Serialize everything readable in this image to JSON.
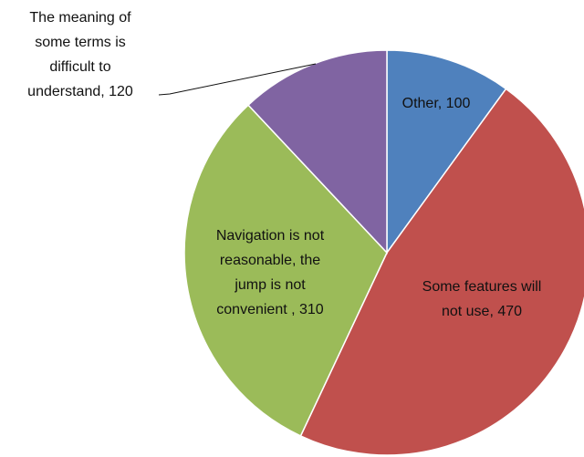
{
  "chart_data": {
    "type": "pie",
    "title": "",
    "slices": [
      {
        "name": "Other",
        "value": 100,
        "color": "#4f81bd",
        "label": [
          "Other, 100"
        ]
      },
      {
        "name": "Some features will not use",
        "value": 470,
        "color": "#c0504d",
        "label": [
          "Some features will",
          "not use, 470"
        ]
      },
      {
        "name": "Navigation is not reasonable, the jump is not convenient",
        "value": 310,
        "color": "#9bbb59",
        "label": [
          "Navigation is not",
          "reasonable, the",
          "jump is not",
          "convenient , 310"
        ]
      },
      {
        "name": "The meaning of some terms is difficult to understand",
        "value": 120,
        "color": "#8064a2",
        "label": [
          "The meaning of",
          "some terms is",
          "difficult to",
          "understand, 120"
        ]
      }
    ],
    "start": "top",
    "direction": "clockwise",
    "legend": "none",
    "data_labels": "category and value"
  }
}
